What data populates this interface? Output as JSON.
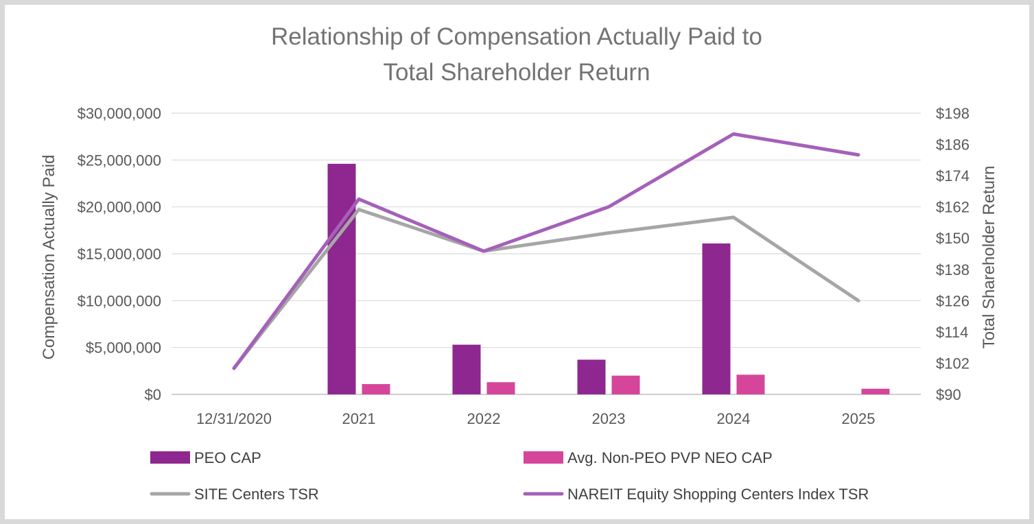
{
  "chart_data": {
    "type": "bar",
    "title": [
      "Relationship of Compensation Actually Paid to",
      "Total Shareholder Return"
    ],
    "categories": [
      "12/31/2020",
      "2021",
      "2022",
      "2023",
      "2024",
      "2025"
    ],
    "ylabel_left": "Compensation Actually Paid",
    "ylabel_right": "Total Shareholder Return",
    "ylim_left": [
      0,
      30000000
    ],
    "ylim_right": [
      90,
      198
    ],
    "left_ticks": [
      "$0",
      "$5,000,000",
      "$10,000,000",
      "$15,000,000",
      "$20,000,000",
      "$25,000,000",
      "$30,000,000"
    ],
    "right_ticks": [
      "$90",
      "$102",
      "$114",
      "$126",
      "$138",
      "$150",
      "$162",
      "$174",
      "$186",
      "$198"
    ],
    "grid": true,
    "legend_position": "bottom",
    "series": [
      {
        "name": "PEO CAP",
        "kind": "bar",
        "axis": "left",
        "color": "#8e278f",
        "values": [
          null,
          24600000,
          5300000,
          3700000,
          16100000,
          null
        ]
      },
      {
        "name": "Avg. Non-PEO PVP NEO CAP",
        "kind": "bar",
        "axis": "left",
        "color": "#d5469a",
        "values": [
          null,
          1100000,
          1300000,
          2000000,
          2100000,
          600000
        ]
      },
      {
        "name": "SITE Centers TSR",
        "kind": "line",
        "axis": "right",
        "color": "#a6a6a6",
        "values": [
          100,
          161,
          145,
          152,
          158,
          126
        ]
      },
      {
        "name": "NAREIT Equity Shopping Centers Index TSR",
        "kind": "line",
        "axis": "right",
        "color": "#a461b8",
        "values": [
          100,
          165,
          145,
          162,
          190,
          182
        ]
      }
    ]
  }
}
